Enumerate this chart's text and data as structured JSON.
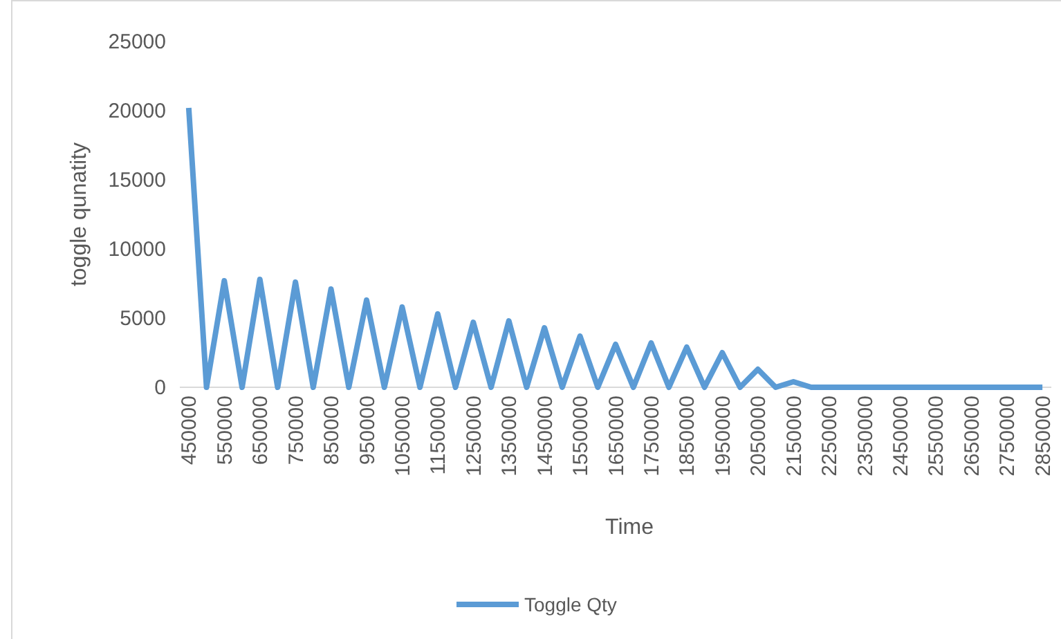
{
  "chart_data": {
    "type": "line",
    "xlabel": "Time",
    "ylabel": "toggle qunatity",
    "categories": [
      "450000",
      null,
      "550000",
      null,
      "650000",
      null,
      "750000",
      null,
      "850000",
      null,
      "950000",
      null,
      "1050000",
      null,
      "1150000",
      null,
      "1250000",
      null,
      "1350000",
      null,
      "1450000",
      null,
      "1550000",
      null,
      "1650000",
      null,
      "1750000",
      null,
      "1850000",
      null,
      "1950000",
      null,
      "2050000",
      null,
      "2150000",
      null,
      "2250000",
      null,
      "2350000",
      null,
      "2450000",
      null,
      "2550000",
      null,
      "2650000",
      null,
      "2750000",
      null,
      "2850000"
    ],
    "series": [
      {
        "name": "Toggle Qty",
        "color": "#5b9bd5",
        "values": [
          20200,
          0,
          7700,
          0,
          7800,
          0,
          7600,
          0,
          7100,
          0,
          6300,
          0,
          5800,
          0,
          5300,
          0,
          4700,
          0,
          4800,
          0,
          4300,
          0,
          3700,
          0,
          3100,
          0,
          3200,
          0,
          2900,
          0,
          2500,
          0,
          1300,
          0,
          400,
          0,
          0,
          0,
          0,
          0,
          0,
          0,
          0,
          0,
          0,
          0,
          0,
          0,
          0
        ]
      }
    ],
    "ylim": [
      0,
      25000
    ],
    "yticks": [
      0,
      5000,
      10000,
      15000,
      20000,
      25000
    ],
    "grid": false,
    "legend": "bottom",
    "marker": "none",
    "line_style": "solid"
  }
}
